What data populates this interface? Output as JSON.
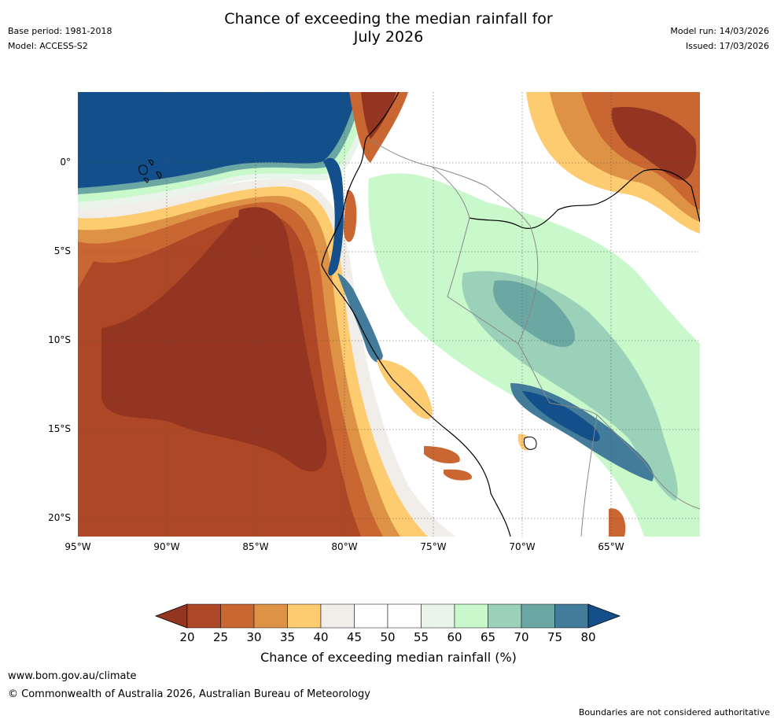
{
  "header": {
    "title_line1": "Chance of exceeding the median rainfall for",
    "title_line2": "July 2026",
    "base_period": "Base period: 1981-2018",
    "model": "Model: ACCESS-S2",
    "model_run": "Model run: 14/03/2026",
    "issued": "Issued: 17/03/2026"
  },
  "map": {
    "region": "Western South America and eastern Pacific",
    "lon_labels": [
      "95°W",
      "90°W",
      "85°W",
      "80°W",
      "75°W",
      "70°W",
      "65°W"
    ],
    "lat_labels": [
      "0°",
      "5°S",
      "10°S",
      "15°S",
      "20°S"
    ]
  },
  "colorbar": {
    "ticks": [
      "20",
      "25",
      "30",
      "35",
      "40",
      "45",
      "50",
      "55",
      "60",
      "65",
      "70",
      "75",
      "80"
    ],
    "colors": [
      "#ae4726",
      "#c96631",
      "#dd9245",
      "#fdcb70",
      "#f1ede8",
      "#ffffff",
      "#ffffff",
      "#e9f5ea",
      "#c9f9cb",
      "#9bd1b9",
      "#6ba8a3",
      "#437b9a"
    ],
    "low_arrow_color": "#933521",
    "high_arrow_color": "#134f8a",
    "label": "Chance of exceeding median rainfall (%)"
  },
  "footer": {
    "website": "www.bom.gov.au/climate",
    "copyright": "© Commonwealth of Australia 2026, Australian Bureau of Meteorology",
    "disclaimer": "Boundaries are not considered authoritative"
  }
}
